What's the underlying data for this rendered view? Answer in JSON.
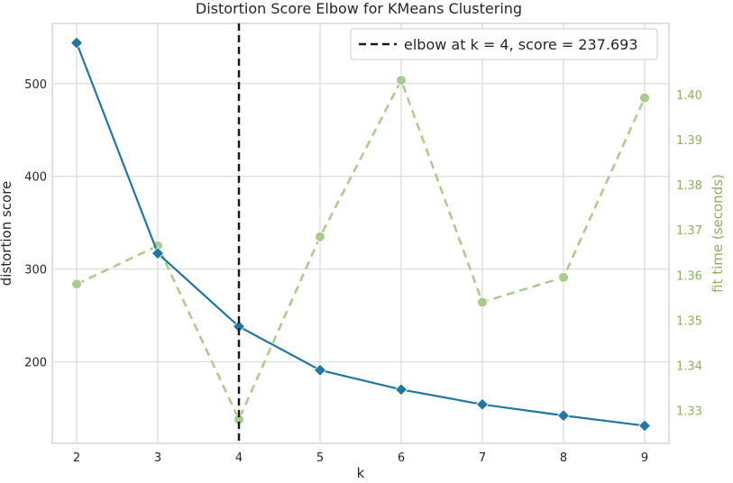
{
  "chart_data": {
    "type": "line",
    "title": "Distortion Score Elbow for KMeans Clustering",
    "xlabel": "k",
    "ylabel": "distortion score",
    "y2label": "fit time (seconds)",
    "x": [
      2,
      3,
      4,
      5,
      6,
      7,
      8,
      9
    ],
    "xlim": [
      1.7,
      9.3
    ],
    "ylim": [
      112,
      565
    ],
    "y2lim": [
      1.3227,
      1.4158
    ],
    "x_ticks": [
      "2",
      "3",
      "4",
      "5",
      "6",
      "7",
      "8",
      "9"
    ],
    "y_ticks": [
      200,
      300,
      400,
      500
    ],
    "y2_ticks": [
      "1.33",
      "1.34",
      "1.35",
      "1.36",
      "1.37",
      "1.38",
      "1.39",
      "1.40"
    ],
    "series": [
      {
        "axis": "left",
        "values": [
          544,
          317,
          238,
          191,
          170,
          154,
          142,
          131
        ],
        "color": "#1f77a4",
        "marker": "diamond"
      },
      {
        "axis": "right",
        "values": [
          1.358,
          1.3665,
          1.328,
          1.3685,
          1.4032,
          1.354,
          1.3595,
          1.3993
        ],
        "color": "#a9cc8c",
        "marker": "circle",
        "dashed": true
      }
    ],
    "elbow": {
      "k": 4,
      "legend_text": "elbow at k = 4, score = 237.693",
      "color": "#1a1a1a"
    },
    "grid": true,
    "legend_position": "top-right"
  }
}
